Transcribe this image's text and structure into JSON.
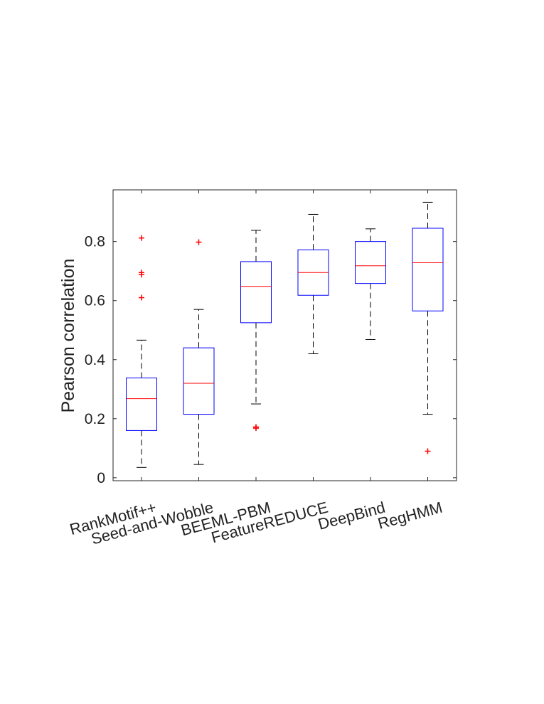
{
  "chart_data": {
    "type": "box",
    "title": "",
    "xlabel": "",
    "ylabel": "Pearson correlation",
    "ylim": [
      -0.01,
      0.975
    ],
    "yticks": [
      0,
      0.2,
      0.4,
      0.6,
      0.8
    ],
    "ytick_labels": [
      "0",
      "0.2",
      "0.4",
      "0.6",
      "0.8"
    ],
    "grid": false,
    "colors": {
      "box": "#0000ff",
      "median": "#ff0000",
      "whisker": "#000000",
      "outlier": "#ff0000",
      "axis": "#262626"
    },
    "categories": [
      "RankMotif++",
      "Seed-and-Wobble",
      "BEEML-PBM",
      "FeatureREDUCE",
      "DeepBind",
      "RegHMM"
    ],
    "boxes": [
      {
        "name": "RankMotif++",
        "whisker_low": 0.035,
        "q1": 0.16,
        "median": 0.268,
        "q3": 0.338,
        "whisker_high": 0.466,
        "outliers": [
          0.61,
          0.688,
          0.695,
          0.812
        ]
      },
      {
        "name": "Seed-and-Wobble",
        "whisker_low": 0.045,
        "q1": 0.215,
        "median": 0.32,
        "q3": 0.44,
        "whisker_high": 0.57,
        "outliers": [
          0.798
        ]
      },
      {
        "name": "BEEML-PBM",
        "whisker_low": 0.25,
        "q1": 0.525,
        "median": 0.648,
        "q3": 0.732,
        "whisker_high": 0.838,
        "outliers": [
          0.168,
          0.172
        ]
      },
      {
        "name": "FeatureREDUCE",
        "whisker_low": 0.42,
        "q1": 0.618,
        "median": 0.695,
        "q3": 0.772,
        "whisker_high": 0.892,
        "outliers": []
      },
      {
        "name": "DeepBind",
        "whisker_low": 0.468,
        "q1": 0.658,
        "median": 0.718,
        "q3": 0.8,
        "whisker_high": 0.843,
        "outliers": []
      },
      {
        "name": "RegHMM",
        "whisker_low": 0.215,
        "q1": 0.565,
        "median": 0.728,
        "q3": 0.845,
        "whisker_high": 0.933,
        "outliers": [
          0.09
        ]
      }
    ]
  }
}
